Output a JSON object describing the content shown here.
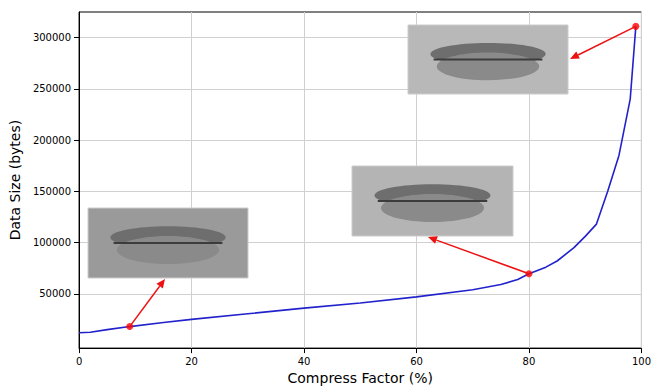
{
  "chart_data": {
    "type": "line",
    "x_label": "Compress Factor (%)",
    "y_label": "Data Size (bytes)",
    "xlim": [
      0,
      100
    ],
    "xticks": [
      0,
      20,
      40,
      60,
      80,
      100
    ],
    "ylim": [
      -3000,
      325000
    ],
    "yticks": [
      50000,
      100000,
      150000,
      200000,
      250000,
      300000
    ],
    "grid": true,
    "series": [
      {
        "type": "line",
        "color": "#2222cc",
        "x": [
          0,
          2,
          5,
          9,
          15,
          20,
          30,
          40,
          50,
          60,
          70,
          75,
          78,
          80,
          83,
          85,
          88,
          90,
          92,
          94,
          96,
          98,
          99
        ],
        "values": [
          12000,
          12500,
          15000,
          18000,
          22000,
          25000,
          30500,
          36000,
          41000,
          47000,
          54000,
          59000,
          64000,
          69500,
          76000,
          82000,
          95000,
          106000,
          118000,
          150000,
          185000,
          240000,
          311000
        ]
      },
      {
        "type": "scatter",
        "color": "#ff0000",
        "marker": "circle",
        "x": [
          9,
          80,
          99
        ],
        "values": [
          18000,
          69500,
          311000
        ]
      }
    ]
  }
}
